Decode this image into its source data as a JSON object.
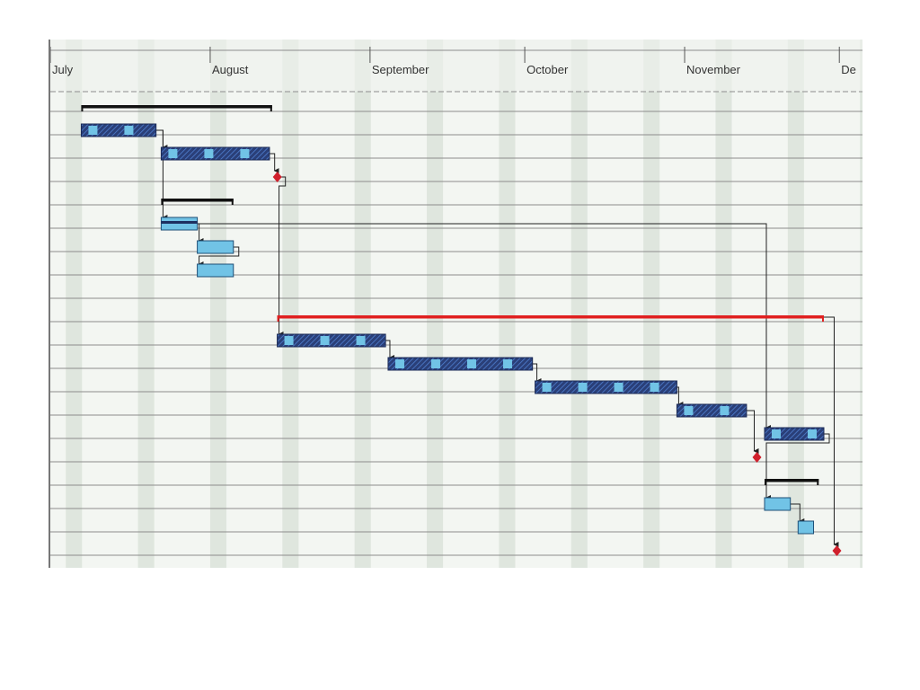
{
  "timescale": {
    "months": [
      {
        "label": "July",
        "start_day": 0
      },
      {
        "label": "August",
        "start_day": 31
      },
      {
        "label": "September",
        "start_day": 62
      },
      {
        "label": "October",
        "start_day": 92
      },
      {
        "label": "November",
        "start_day": 123
      },
      {
        "label": "De",
        "start_day": 153
      }
    ],
    "week_days": 7,
    "first_week_offset": 3
  },
  "colors": {
    "panel_bg": "#f3f6f2",
    "shade": "#dfe6de",
    "grid": "#8c8c8c",
    "task_fill": "#71c3e6",
    "summary_task_fill": "#2a3f78",
    "summary_task_stripe": "#4f7fd0",
    "milestone": "#d0202c",
    "critical_summary": "#e02020",
    "summary": "#111111",
    "link": "#222222"
  },
  "tasks": [
    {
      "id": "s1",
      "type": "summary",
      "row": 0,
      "start": 6,
      "end": 43
    },
    {
      "id": "t1",
      "type": "hatched",
      "row": 1,
      "start": 6,
      "end": 20.5
    },
    {
      "id": "t2",
      "type": "hatched",
      "row": 2,
      "start": 21.5,
      "end": 42.5
    },
    {
      "id": "m1",
      "type": "milestone",
      "row": 3,
      "start": 43.5
    },
    {
      "id": "s2",
      "type": "summary",
      "row": 4,
      "start": 21.5,
      "end": 35.5
    },
    {
      "id": "t3",
      "type": "task",
      "row": 5,
      "start": 21.5,
      "end": 28.5,
      "inner_bar": true
    },
    {
      "id": "t4",
      "type": "task",
      "row": 6,
      "start": 28.5,
      "end": 35.5
    },
    {
      "id": "t5",
      "type": "task",
      "row": 7,
      "start": 28.5,
      "end": 35.5
    },
    {
      "id": "s3",
      "type": "critical-summary",
      "row": 9,
      "start": 44,
      "end": 150
    },
    {
      "id": "t6",
      "type": "hatched",
      "row": 10,
      "start": 44,
      "end": 65
    },
    {
      "id": "t7",
      "type": "hatched",
      "row": 11,
      "start": 65.5,
      "end": 93.5
    },
    {
      "id": "t8",
      "type": "hatched",
      "row": 12,
      "start": 94,
      "end": 121.5
    },
    {
      "id": "t9",
      "type": "hatched",
      "row": 13,
      "start": 121.5,
      "end": 135
    },
    {
      "id": "t10",
      "type": "hatched",
      "row": 14,
      "start": 138.5,
      "end": 150
    },
    {
      "id": "m2",
      "type": "milestone",
      "row": 15,
      "start": 136.5
    },
    {
      "id": "s4",
      "type": "summary",
      "row": 16,
      "start": 138.5,
      "end": 149
    },
    {
      "id": "t11",
      "type": "task",
      "row": 17,
      "start": 138.5,
      "end": 143.5
    },
    {
      "id": "t12",
      "type": "task",
      "row": 18,
      "start": 145,
      "end": 148
    },
    {
      "id": "m3",
      "type": "milestone",
      "row": 19,
      "start": 152
    }
  ],
  "links": [
    {
      "from": "t1",
      "to": "t2"
    },
    {
      "from": "t2",
      "to": "m1"
    },
    {
      "from": "t1",
      "to": "t3"
    },
    {
      "from": "t3",
      "to": "t4"
    },
    {
      "from": "t4",
      "to": "t5"
    },
    {
      "from": "m1",
      "to": "t6"
    },
    {
      "from": "t6",
      "to": "t7"
    },
    {
      "from": "t7",
      "to": "t8"
    },
    {
      "from": "t8",
      "to": "t9"
    },
    {
      "from": "t9",
      "to": "m2"
    },
    {
      "from": "t3",
      "to": "t10"
    },
    {
      "from": "t10",
      "to": "t11"
    },
    {
      "from": "t11",
      "to": "t12"
    },
    {
      "from": "s3",
      "to": "m3"
    }
  ]
}
